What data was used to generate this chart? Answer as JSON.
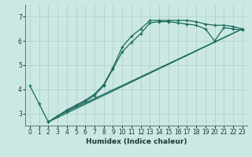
{
  "xlabel": "Humidex (Indice chaleur)",
  "xlim": [
    -0.5,
    23.5
  ],
  "ylim": [
    2.5,
    7.5
  ],
  "yticks": [
    3,
    4,
    5,
    6,
    7
  ],
  "xticks": [
    0,
    1,
    2,
    3,
    4,
    5,
    6,
    7,
    8,
    9,
    10,
    11,
    12,
    13,
    14,
    15,
    16,
    17,
    18,
    19,
    20,
    21,
    22,
    23
  ],
  "bg_color": "#cce8e4",
  "line_color": "#1a6b5a",
  "grid_color": "#aaceca",
  "series": [
    {
      "x": [
        0,
        1,
        2,
        3,
        4,
        5,
        6,
        7,
        8,
        9,
        10,
        11,
        12,
        13,
        14,
        15,
        16,
        17,
        18,
        19,
        20,
        21,
        22,
        23
      ],
      "y": [
        4.15,
        3.4,
        2.65,
        2.9,
        3.15,
        3.35,
        3.55,
        3.8,
        4.2,
        4.9,
        5.75,
        6.2,
        6.5,
        6.85,
        6.85,
        6.85,
        6.85,
        6.85,
        6.8,
        6.7,
        6.65,
        6.65,
        6.6,
        6.5
      ],
      "style": "-",
      "marker": "+"
    },
    {
      "x": [
        2,
        3,
        4,
        5,
        6,
        7,
        8,
        9,
        10,
        11,
        12,
        13,
        14,
        15,
        16,
        17,
        18,
        19,
        20,
        21,
        22,
        23
      ],
      "y": [
        2.65,
        2.9,
        3.1,
        3.3,
        3.5,
        3.75,
        4.15,
        4.85,
        5.55,
        5.95,
        6.3,
        6.75,
        6.8,
        6.8,
        6.75,
        6.7,
        6.65,
        6.5,
        6.0,
        6.55,
        6.5,
        6.45
      ],
      "style": "-",
      "marker": "+"
    },
    {
      "x": [
        2,
        23
      ],
      "y": [
        2.65,
        6.5
      ],
      "style": "-",
      "marker": null
    },
    {
      "x": [
        3,
        23
      ],
      "y": [
        2.9,
        6.5
      ],
      "style": "-",
      "marker": null
    }
  ]
}
